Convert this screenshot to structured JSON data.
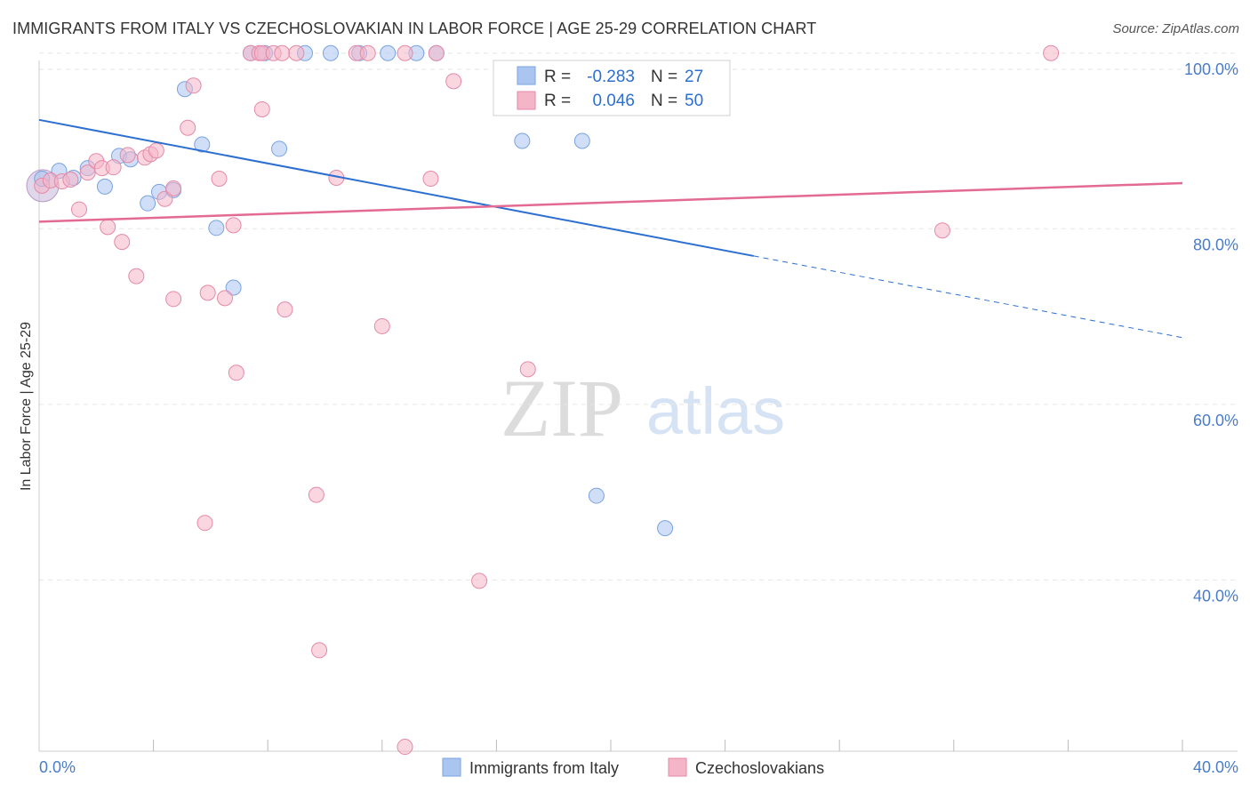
{
  "header": {
    "title": "IMMIGRANTS FROM ITALY VS CZECHOSLOVAKIAN IN LABOR FORCE | AGE 25-29 CORRELATION CHART",
    "source": "Source: ZipAtlas.com"
  },
  "watermark": {
    "zip": "ZIP",
    "atlas": "atlas"
  },
  "chart_data": {
    "type": "scatter",
    "title": "IMMIGRANTS FROM ITALY VS CZECHOSLOVAKIAN IN LABOR FORCE | AGE 25-29 CORRELATION CHART",
    "xlabel": "",
    "ylabel": "In Labor Force | Age 25-29",
    "xlim": [
      0,
      40
    ],
    "ylim": [
      20.5,
      102
    ],
    "x_tick_labels": [
      "0.0%",
      "40.0%"
    ],
    "y_ticks": [
      40,
      60,
      80,
      100
    ],
    "y_tick_labels": [
      "40.0%",
      "60.0%",
      "80.0%",
      "100.0%"
    ],
    "grid": true,
    "legend": {
      "placement": "top-center",
      "r_label": "R =",
      "n_label": "N =",
      "entries": [
        {
          "name": "Immigrants from Italy",
          "r": "-0.283",
          "n": "27",
          "color": "#a9c5f0",
          "stroke": "#7aa3e0"
        },
        {
          "name": "Czechoslovakians",
          "r": "0.046",
          "n": "50",
          "color": "#f5b5c8",
          "stroke": "#e48aa6"
        }
      ]
    },
    "series": [
      {
        "name": "Immigrants from Italy",
        "color": "#a9c5f0",
        "line_color": "#2c6fd1",
        "trend": {
          "x0": 0,
          "y0": 92.4,
          "x1": 25,
          "y1": 76.9,
          "x_dashed_end": 40,
          "y_dashed_end": 67.6
        },
        "points": [
          [
            0.1,
            85.7
          ],
          [
            0.7,
            86.6
          ],
          [
            1.2,
            85.8
          ],
          [
            1.7,
            86.9
          ],
          [
            2.3,
            84.8
          ],
          [
            2.8,
            88.3
          ],
          [
            3.2,
            87.9
          ],
          [
            3.8,
            82.9
          ],
          [
            4.2,
            84.2
          ],
          [
            4.7,
            84.4
          ],
          [
            5.1,
            95.9
          ],
          [
            5.7,
            89.6
          ],
          [
            6.2,
            80.1
          ],
          [
            6.8,
            73.3
          ],
          [
            7.4,
            100
          ],
          [
            7.9,
            100
          ],
          [
            8.4,
            89.1
          ],
          [
            9.3,
            100
          ],
          [
            10.2,
            100
          ],
          [
            11.2,
            100
          ],
          [
            12.2,
            100
          ],
          [
            13.2,
            100
          ],
          [
            13.9,
            100
          ],
          [
            16.9,
            90.0
          ],
          [
            19.0,
            90.0
          ],
          [
            19.5,
            49.6
          ],
          [
            21.9,
            45.9
          ]
        ]
      },
      {
        "name": "Czechoslovakians",
        "color": "#f5b5c8",
        "line_color": "#e26a93",
        "trend": {
          "x0": 0,
          "y0": 80.8,
          "x1": 40,
          "y1": 85.2
        },
        "points": [
          [
            0.1,
            84.9
          ],
          [
            0.4,
            85.5
          ],
          [
            0.8,
            85.4
          ],
          [
            1.1,
            85.6
          ],
          [
            1.4,
            82.2
          ],
          [
            1.7,
            86.4
          ],
          [
            2.0,
            87.7
          ],
          [
            2.2,
            86.9
          ],
          [
            2.4,
            80.2
          ],
          [
            2.6,
            87.0
          ],
          [
            2.9,
            78.5
          ],
          [
            3.1,
            88.4
          ],
          [
            3.4,
            74.6
          ],
          [
            3.7,
            88.1
          ],
          [
            3.9,
            88.5
          ],
          [
            4.1,
            88.9
          ],
          [
            4.4,
            83.4
          ],
          [
            4.7,
            84.6
          ],
          [
            4.7,
            72.0
          ],
          [
            5.2,
            91.5
          ],
          [
            5.4,
            96.3
          ],
          [
            5.8,
            46.5
          ],
          [
            5.9,
            72.7
          ],
          [
            6.3,
            85.7
          ],
          [
            6.5,
            72.1
          ],
          [
            6.8,
            80.4
          ],
          [
            6.9,
            63.6
          ],
          [
            7.4,
            100
          ],
          [
            7.7,
            100
          ],
          [
            7.8,
            100
          ],
          [
            7.8,
            93.6
          ],
          [
            8.2,
            100
          ],
          [
            8.5,
            100
          ],
          [
            8.6,
            70.8
          ],
          [
            9.0,
            100
          ],
          [
            9.7,
            49.7
          ],
          [
            9.8,
            32.0
          ],
          [
            10.4,
            85.8
          ],
          [
            11.1,
            100
          ],
          [
            11.5,
            100
          ],
          [
            12.0,
            68.9
          ],
          [
            12.8,
            100
          ],
          [
            12.8,
            21.0
          ],
          [
            13.7,
            85.7
          ],
          [
            13.9,
            100
          ],
          [
            14.5,
            96.8
          ],
          [
            15.4,
            39.9
          ],
          [
            17.1,
            64.0
          ],
          [
            31.6,
            79.8
          ],
          [
            35.4,
            100
          ]
        ]
      }
    ]
  }
}
